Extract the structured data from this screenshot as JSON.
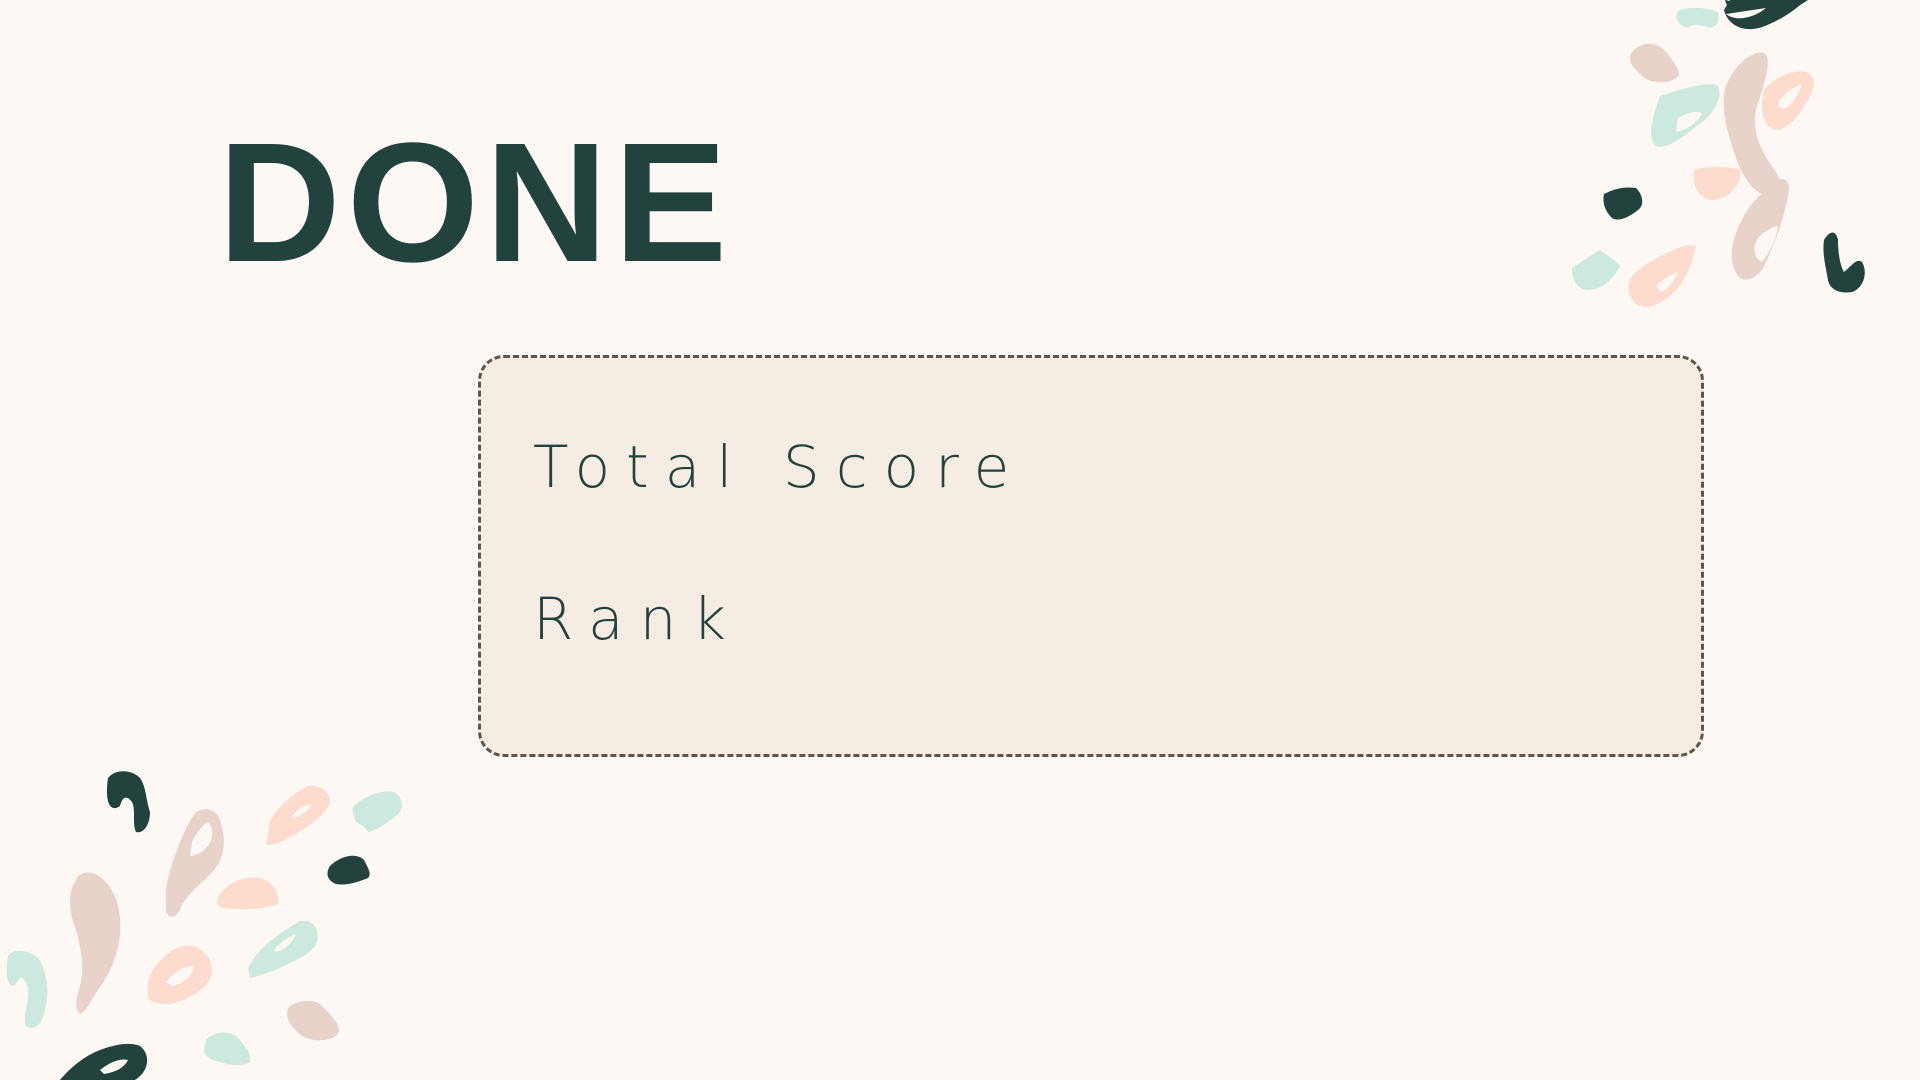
{
  "screen": {
    "title": "DONE"
  },
  "results": {
    "total_score_label": "Total Score",
    "rank_label": "Rank"
  },
  "colors": {
    "background": "#fdf8f4",
    "card_background": "#f5ece3",
    "card_border": "#5c5650",
    "title_text": "#21423d",
    "decor_green_dark": "#21423d",
    "decor_mint": "#cbe9dc",
    "decor_peach": "#fddccd",
    "decor_rose": "#e8d3cb"
  },
  "decorations": {
    "top_right": "terrazzo-confetti-icon",
    "bottom_left": "terrazzo-confetti-icon"
  }
}
